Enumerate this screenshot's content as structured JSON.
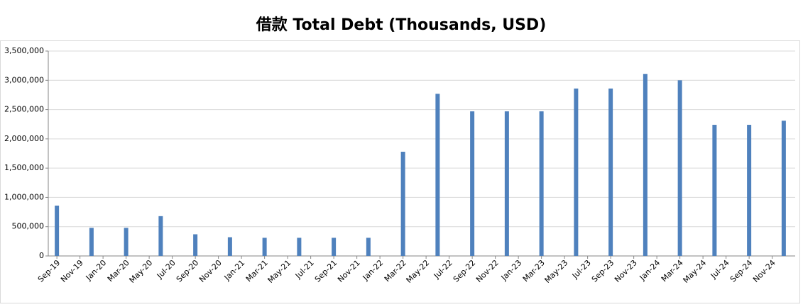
{
  "chart_data": {
    "type": "bar",
    "title": "借款 Total Debt (Thousands, USD)",
    "categories": [
      "Sep-19",
      null,
      "Nov-19",
      null,
      "Jan-20",
      null,
      "Mar-20",
      null,
      "May-20",
      null,
      "Jul-20",
      null,
      "Sep-20",
      null,
      "Nov-20",
      null,
      "Jan-21",
      null,
      "Mar-21",
      null,
      "May-21",
      null,
      "Jul-21",
      null,
      "Sep-21",
      null,
      "Nov-21",
      null,
      "Jan-22",
      null,
      "Mar-22",
      null,
      "May-22",
      null,
      "Jul-22",
      null,
      "Sep-22",
      null,
      "Nov-22",
      null,
      "Jan-23",
      null,
      "Mar-23",
      null,
      "May-23",
      null,
      "Jul-23",
      null,
      "Sep-23",
      null,
      "Nov-23",
      null,
      "Jan-24",
      null,
      "Mar-24",
      null,
      "May-24",
      null,
      "Jul-24",
      null,
      "Sep-24",
      null,
      "Nov-24",
      null
    ],
    "values": [
      860000,
      null,
      null,
      480000,
      null,
      null,
      480000,
      null,
      null,
      680000,
      null,
      null,
      370000,
      null,
      null,
      320000,
      null,
      null,
      310000,
      null,
      null,
      310000,
      null,
      null,
      310000,
      null,
      null,
      310000,
      null,
      null,
      1780000,
      null,
      null,
      2770000,
      null,
      null,
      2470000,
      null,
      null,
      2470000,
      null,
      null,
      2470000,
      null,
      null,
      2860000,
      null,
      null,
      2860000,
      null,
      null,
      3110000,
      null,
      null,
      3000000,
      null,
      null,
      2240000,
      null,
      null,
      2240000,
      null,
      null,
      2310000
    ],
    "color": "#4f81bd",
    "ylim": [
      0,
      3500000
    ],
    "yticks": [
      0,
      {
        "value": 500000,
        "label": "500,000"
      },
      {
        "value": 1000000,
        "label": "1,000,000"
      },
      {
        "value": 1500000,
        "label": "1,500,000"
      },
      {
        "value": 2000000,
        "label": "2,000,000"
      },
      {
        "value": 2500000,
        "label": "2,500,000"
      },
      {
        "value": 3000000,
        "label": "3,000,000"
      },
      {
        "value": 3500000,
        "label": "3,500,000"
      }
    ],
    "grid": true
  }
}
